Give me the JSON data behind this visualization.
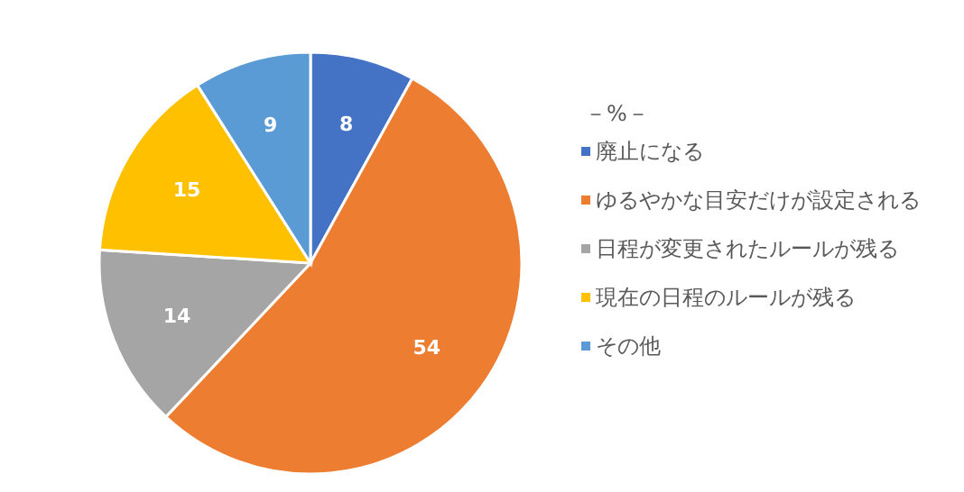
{
  "chart_data": {
    "type": "pie",
    "legend_title": "－%－",
    "categories": [
      "廃止になる",
      "ゆるやかな目安だけが設定される",
      "日程が変更されたルールが残る",
      "現在の日程のルールが残る",
      "その他"
    ],
    "values": [
      8,
      54,
      14,
      15,
      9
    ],
    "colors": [
      "#4472c4",
      "#ed7d31",
      "#a5a5a5",
      "#ffc000",
      "#5b9bd5"
    ],
    "data_labels": true,
    "legend": "right"
  }
}
